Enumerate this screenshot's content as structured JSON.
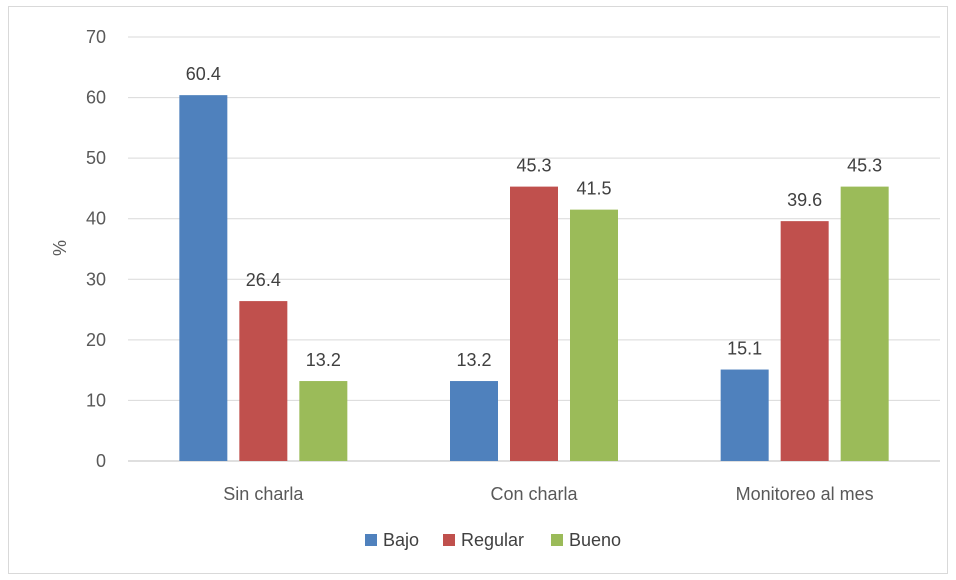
{
  "chart_data": {
    "type": "bar",
    "title": "",
    "xlabel": "",
    "ylabel": "%",
    "ylim": [
      0,
      70
    ],
    "yticks": [
      0,
      10,
      20,
      30,
      40,
      50,
      60,
      70
    ],
    "grid": true,
    "legend_position": "bottom",
    "categories": [
      "Sin charla",
      "Con charla",
      "Monitoreo al mes"
    ],
    "series": [
      {
        "name": "Bajo",
        "color": "#4f81bd",
        "values": [
          60.4,
          13.2,
          15.1
        ]
      },
      {
        "name": "Regular",
        "color": "#c0504d",
        "values": [
          26.4,
          45.3,
          39.6
        ]
      },
      {
        "name": "Bueno",
        "color": "#9bbb59",
        "values": [
          13.2,
          41.5,
          45.3
        ]
      }
    ]
  }
}
